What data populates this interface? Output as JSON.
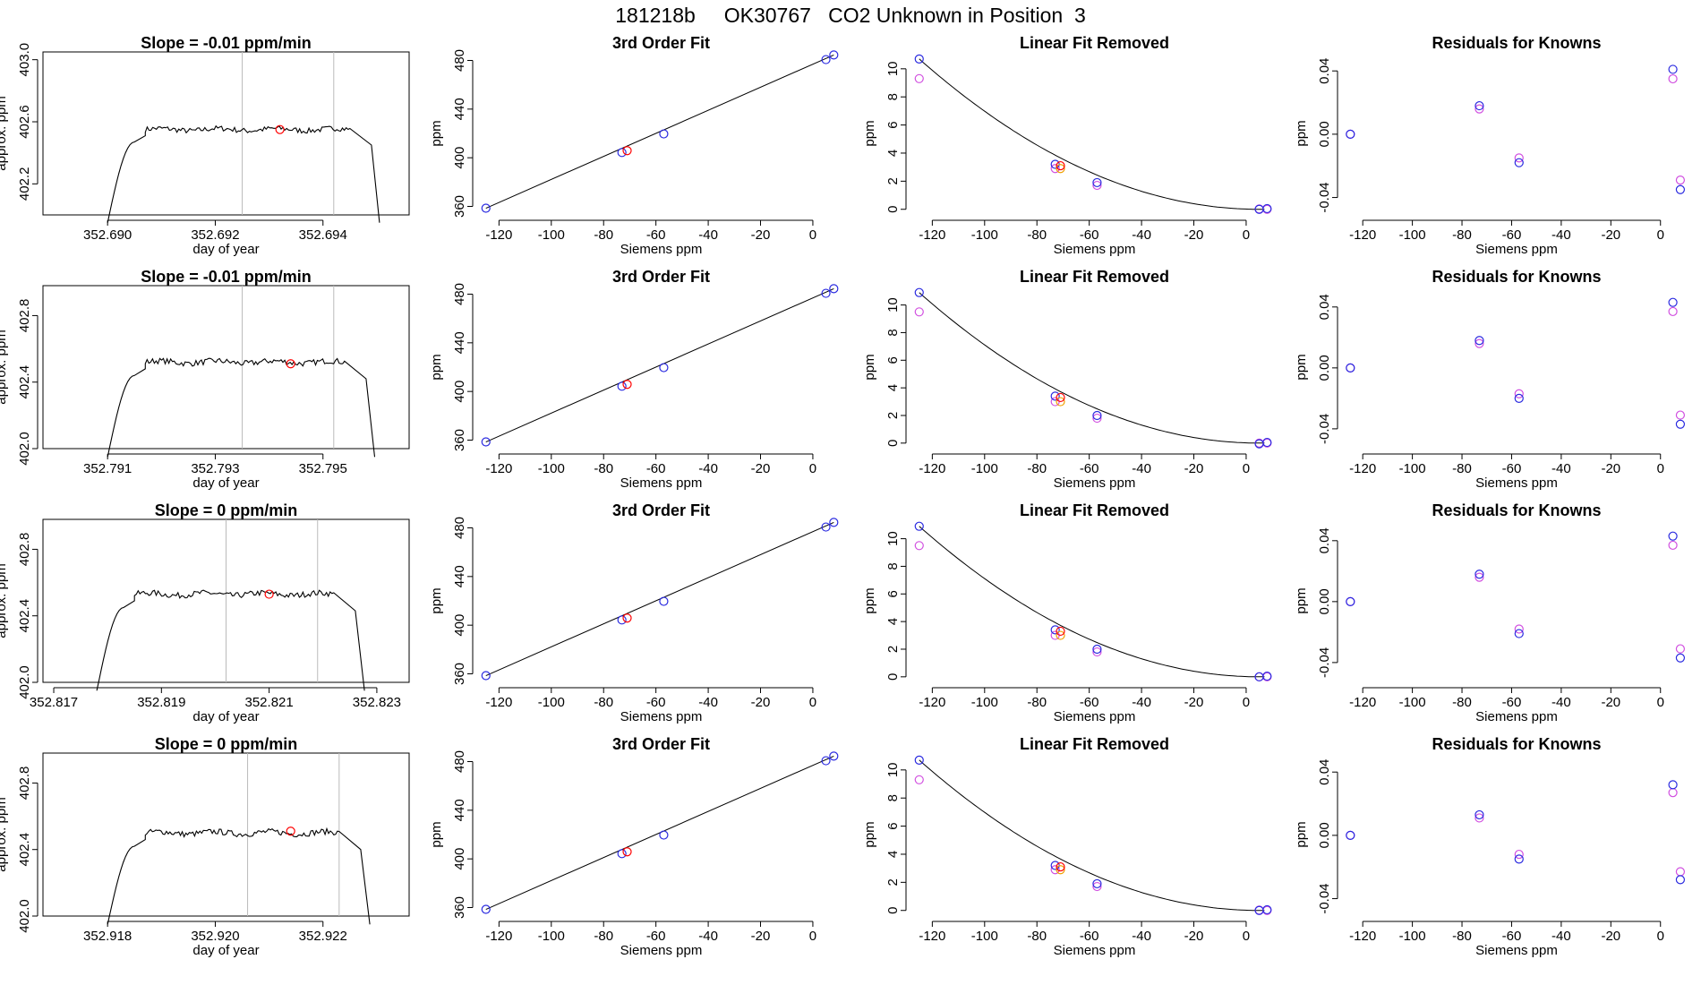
{
  "title": "181218b     OK30767   CO2 Unknown in Position  3",
  "colors": {
    "axis": "#000000",
    "trace": "#000000",
    "guide": "#bbbbbb",
    "unknown": "#ff0000",
    "known_blue": "#2a2ae0",
    "known_magenta": "#d14fe0",
    "orange": "#f0a000"
  },
  "chart_data": [
    {
      "row": 1,
      "type": "line",
      "title": "Slope =  -0.01  ppm/min",
      "xlabel": "day of year",
      "ylabel": "approx. ppm",
      "xlim": [
        352.6888,
        352.6956
      ],
      "ylim": [
        402.0,
        403.05
      ],
      "xticks": [
        352.69,
        352.692,
        352.694
      ],
      "xtick_labels": [
        "352.690",
        "352.692",
        "352.694"
      ],
      "yticks": [
        402.2,
        402.6,
        403.0
      ],
      "ytick_labels": [
        "402.2",
        "402.6",
        "403.0"
      ],
      "guides": [
        352.6925,
        352.6942
      ],
      "plateau_level": 402.55,
      "onset": [
        352.69,
        352.6905,
        352.6907
      ],
      "offset": [
        352.6945,
        352.6949,
        352.69505
      ],
      "unknown_point": [
        352.6932,
        402.55
      ]
    },
    {
      "row": 2,
      "type": "line",
      "title": "Slope =  -0.01  ppm/min",
      "xlabel": "day of year",
      "ylabel": "approx. ppm",
      "xlim": [
        352.7898,
        352.7966
      ],
      "ylim": [
        402.0,
        402.98
      ],
      "xticks": [
        352.791,
        352.793,
        352.795
      ],
      "xtick_labels": [
        "352.791",
        "352.793",
        "352.795"
      ],
      "yticks": [
        402.0,
        402.4,
        402.8
      ],
      "ytick_labels": [
        "402.0",
        "402.4",
        "402.8"
      ],
      "guides": [
        352.7935,
        352.7952
      ],
      "plateau_level": 402.52,
      "onset": [
        352.791,
        352.7915,
        352.7917
      ],
      "offset": [
        352.7954,
        352.7958,
        352.79596
      ],
      "unknown_point": [
        352.7944,
        402.51
      ]
    },
    {
      "row": 3,
      "type": "line",
      "title": "Slope =  0  ppm/min",
      "xlabel": "day of year",
      "ylabel": "approx. ppm",
      "xlim": [
        352.8168,
        352.8236
      ],
      "ylim": [
        402.0,
        402.98
      ],
      "xticks": [
        352.817,
        352.819,
        352.821,
        352.823
      ],
      "xtick_labels": [
        "352.817",
        "352.819",
        "352.821",
        "352.823"
      ],
      "yticks": [
        402.0,
        402.4,
        402.8
      ],
      "ytick_labels": [
        "402.0",
        "402.4",
        "402.8"
      ],
      "guides": [
        352.8202,
        352.8219
      ],
      "plateau_level": 402.53,
      "onset": [
        352.8178,
        352.8183,
        352.8185
      ],
      "offset": [
        352.8222,
        352.8226,
        352.82277
      ],
      "unknown_point": [
        352.821,
        402.53
      ]
    },
    {
      "row": 4,
      "type": "line",
      "title": "Slope =  0  ppm/min",
      "xlabel": "day of year",
      "ylabel": "approx. ppm",
      "xlim": [
        352.9168,
        352.9236
      ],
      "ylim": [
        402.0,
        402.98
      ],
      "xticks": [
        352.918,
        352.92,
        352.922
      ],
      "xtick_labels": [
        "352.918",
        "352.920",
        "352.922"
      ],
      "yticks": [
        402.0,
        402.4,
        402.8
      ],
      "ytick_labels": [
        "402.0",
        "402.4",
        "402.8"
      ],
      "guides": [
        352.9206,
        352.9223
      ],
      "plateau_level": 402.5,
      "onset": [
        352.918,
        352.9185,
        352.9187
      ],
      "offset": [
        352.9223,
        352.9227,
        352.92287
      ],
      "unknown_point": [
        352.9214,
        402.51
      ]
    },
    {
      "row": 1,
      "type": "scatter",
      "title": "3rd Order Fit",
      "xlabel": "Siemens ppm",
      "ylabel": "ppm",
      "xlim": [
        -128,
        12
      ],
      "ylim": [
        353,
        487
      ],
      "xticks": [
        -120,
        -100,
        -80,
        -60,
        -40,
        -20,
        0
      ],
      "xtick_labels": [
        "-120",
        "-100",
        "-80",
        "-60",
        "-40",
        "-20",
        "0"
      ],
      "yticks": [
        360,
        400,
        440,
        480
      ],
      "ytick_labels": [
        "360",
        "400",
        "440",
        "480"
      ],
      "fit_line": [
        [
          -125,
          358.5
        ],
        [
          8,
          484.5
        ]
      ],
      "known": [
        [
          -125,
          358.5
        ],
        [
          -73,
          404.3
        ],
        [
          -57,
          419.6
        ],
        [
          5,
          480.7
        ],
        [
          8,
          484.5
        ]
      ],
      "unknown": [
        [
          -71,
          405.8
        ]
      ]
    },
    {
      "row": 2,
      "type": "scatter",
      "title": "3rd Order Fit",
      "xlabel": "Siemens ppm",
      "ylabel": "ppm",
      "xlim": [
        -128,
        12
      ],
      "ylim": [
        353,
        487
      ],
      "xticks": [
        -120,
        -100,
        -80,
        -60,
        -40,
        -20,
        0
      ],
      "xtick_labels": [
        "-120",
        "-100",
        "-80",
        "-60",
        "-40",
        "-20",
        "0"
      ],
      "yticks": [
        360,
        400,
        440,
        480
      ],
      "ytick_labels": [
        "360",
        "400",
        "440",
        "480"
      ],
      "fit_line": [
        [
          -125,
          358.5
        ],
        [
          8,
          484.5
        ]
      ],
      "known": [
        [
          -125,
          358.5
        ],
        [
          -73,
          404.3
        ],
        [
          -57,
          419.6
        ],
        [
          5,
          480.7
        ],
        [
          8,
          484.5
        ]
      ],
      "unknown": [
        [
          -71,
          405.8
        ]
      ]
    },
    {
      "row": 3,
      "type": "scatter",
      "title": "3rd Order Fit",
      "xlabel": "Siemens ppm",
      "ylabel": "ppm",
      "xlim": [
        -128,
        12
      ],
      "ylim": [
        353,
        487
      ],
      "xticks": [
        -120,
        -100,
        -80,
        -60,
        -40,
        -20,
        0
      ],
      "xtick_labels": [
        "-120",
        "-100",
        "-80",
        "-60",
        "-40",
        "-20",
        "0"
      ],
      "yticks": [
        360,
        400,
        440,
        480
      ],
      "ytick_labels": [
        "360",
        "400",
        "440",
        "480"
      ],
      "fit_line": [
        [
          -125,
          358.5
        ],
        [
          8,
          484.5
        ]
      ],
      "known": [
        [
          -125,
          358.5
        ],
        [
          -73,
          404.3
        ],
        [
          -57,
          419.6
        ],
        [
          5,
          480.7
        ],
        [
          8,
          484.5
        ]
      ],
      "unknown": [
        [
          -71,
          405.8
        ]
      ]
    },
    {
      "row": 4,
      "type": "scatter",
      "title": "3rd Order Fit",
      "xlabel": "Siemens ppm",
      "ylabel": "ppm",
      "xlim": [
        -128,
        12
      ],
      "ylim": [
        353,
        487
      ],
      "xticks": [
        -120,
        -100,
        -80,
        -60,
        -40,
        -20,
        0
      ],
      "xtick_labels": [
        "-120",
        "-100",
        "-80",
        "-60",
        "-40",
        "-20",
        "0"
      ],
      "yticks": [
        360,
        400,
        440,
        480
      ],
      "ytick_labels": [
        "360",
        "400",
        "440",
        "480"
      ],
      "fit_line": [
        [
          -125,
          358.5
        ],
        [
          8,
          484.5
        ]
      ],
      "known": [
        [
          -125,
          358.5
        ],
        [
          -73,
          404.3
        ],
        [
          -57,
          419.6
        ],
        [
          5,
          480.7
        ],
        [
          8,
          484.5
        ]
      ],
      "unknown": [
        [
          -71,
          405.8
        ]
      ]
    },
    {
      "row": 1,
      "type": "scatter",
      "title": "Linear Fit Removed",
      "xlabel": "Siemens ppm",
      "ylabel": "ppm",
      "xlim": [
        -128,
        12
      ],
      "ylim": [
        -0.4,
        11.2
      ],
      "xticks": [
        -120,
        -100,
        -80,
        -60,
        -40,
        -20,
        0
      ],
      "xtick_labels": [
        "-120",
        "-100",
        "-80",
        "-60",
        "-40",
        "-20",
        "0"
      ],
      "yticks": [
        0,
        2,
        4,
        6,
        8,
        10
      ],
      "ytick_labels": [
        "0",
        "2",
        "4",
        "6",
        "8",
        "10"
      ],
      "curve_peak": 10.7,
      "known_blue": [
        [
          -125,
          10.7
        ],
        [
          -73,
          3.2
        ],
        [
          -57,
          1.9
        ],
        [
          5,
          0.0
        ],
        [
          8,
          0.05
        ]
      ],
      "known_magenta": [
        [
          -125,
          9.3
        ],
        [
          -73,
          2.9
        ],
        [
          -57,
          1.7
        ],
        [
          5,
          0.02
        ],
        [
          8,
          0.0
        ]
      ],
      "unknown": [
        [
          -71,
          3.1
        ]
      ],
      "orange": [
        [
          -71,
          2.9
        ]
      ]
    },
    {
      "row": 2,
      "type": "scatter",
      "title": "Linear Fit Removed",
      "xlabel": "Siemens ppm",
      "ylabel": "ppm",
      "xlim": [
        -128,
        12
      ],
      "ylim": [
        -0.4,
        11.4
      ],
      "xticks": [
        -120,
        -100,
        -80,
        -60,
        -40,
        -20,
        0
      ],
      "xtick_labels": [
        "-120",
        "-100",
        "-80",
        "-60",
        "-40",
        "-20",
        "0"
      ],
      "yticks": [
        0,
        2,
        4,
        6,
        8,
        10
      ],
      "ytick_labels": [
        "0",
        "2",
        "4",
        "6",
        "8",
        "10"
      ],
      "curve_peak": 10.9,
      "known_blue": [
        [
          -125,
          10.9
        ],
        [
          -73,
          3.4
        ],
        [
          -57,
          2.0
        ],
        [
          5,
          -0.05
        ],
        [
          8,
          0.05
        ]
      ],
      "known_magenta": [
        [
          -125,
          9.5
        ],
        [
          -73,
          3.0
        ],
        [
          -57,
          1.8
        ],
        [
          5,
          0.0
        ],
        [
          8,
          0.0
        ]
      ],
      "unknown": [
        [
          -71,
          3.3
        ]
      ],
      "orange": [
        [
          -71,
          3.0
        ]
      ]
    },
    {
      "row": 3,
      "type": "scatter",
      "title": "Linear Fit Removed",
      "xlabel": "Siemens ppm",
      "ylabel": "ppm",
      "xlim": [
        -128,
        12
      ],
      "ylim": [
        -0.4,
        11.4
      ],
      "xticks": [
        -120,
        -100,
        -80,
        -60,
        -40,
        -20,
        0
      ],
      "xtick_labels": [
        "-120",
        "-100",
        "-80",
        "-60",
        "-40",
        "-20",
        "0"
      ],
      "yticks": [
        0,
        2,
        4,
        6,
        8,
        10
      ],
      "ytick_labels": [
        "0",
        "2",
        "4",
        "6",
        "8",
        "10"
      ],
      "curve_peak": 10.9,
      "known_blue": [
        [
          -125,
          10.9
        ],
        [
          -73,
          3.4
        ],
        [
          -57,
          2.0
        ],
        [
          5,
          0.0
        ],
        [
          8,
          0.05
        ]
      ],
      "known_magenta": [
        [
          -125,
          9.5
        ],
        [
          -73,
          3.0
        ],
        [
          -57,
          1.8
        ],
        [
          5,
          0.0
        ],
        [
          8,
          0.0
        ]
      ],
      "unknown": [
        [
          -71,
          3.3
        ]
      ],
      "orange": [
        [
          -71,
          3.0
        ]
      ]
    },
    {
      "row": 4,
      "type": "scatter",
      "title": "Linear Fit Removed",
      "xlabel": "Siemens ppm",
      "ylabel": "ppm",
      "xlim": [
        -128,
        12
      ],
      "ylim": [
        -0.4,
        11.2
      ],
      "xticks": [
        -120,
        -100,
        -80,
        -60,
        -40,
        -20,
        0
      ],
      "xtick_labels": [
        "-120",
        "-100",
        "-80",
        "-60",
        "-40",
        "-20",
        "0"
      ],
      "yticks": [
        0,
        2,
        4,
        6,
        8,
        10
      ],
      "ytick_labels": [
        "0",
        "2",
        "4",
        "6",
        "8",
        "10"
      ],
      "curve_peak": 10.7,
      "known_blue": [
        [
          -125,
          10.7
        ],
        [
          -73,
          3.2
        ],
        [
          -57,
          1.9
        ],
        [
          5,
          0.0
        ],
        [
          8,
          0.05
        ]
      ],
      "known_magenta": [
        [
          -125,
          9.3
        ],
        [
          -73,
          2.9
        ],
        [
          -57,
          1.7
        ],
        [
          5,
          0.02
        ],
        [
          8,
          0.0
        ]
      ],
      "unknown": [
        [
          -71,
          3.1
        ]
      ],
      "orange": [
        [
          -71,
          2.9
        ]
      ]
    },
    {
      "row": 1,
      "type": "scatter",
      "title": "Residuals for Knowns",
      "xlabel": "Siemens ppm",
      "ylabel": "ppm",
      "xlim": [
        -128,
        12
      ],
      "ylim": [
        -0.051,
        0.052
      ],
      "xticks": [
        -120,
        -100,
        -80,
        -60,
        -40,
        -20,
        0
      ],
      "xtick_labels": [
        "-120",
        "-100",
        "-80",
        "-60",
        "-40",
        "-20",
        "0"
      ],
      "yticks": [
        -0.04,
        0.0,
        0.04
      ],
      "ytick_labels": [
        "-0.04",
        "0.00",
        "0.04"
      ],
      "known_blue": [
        [
          -125,
          0.0
        ],
        [
          -73,
          0.018
        ],
        [
          -57,
          -0.018
        ],
        [
          5,
          0.041
        ],
        [
          8,
          -0.035
        ]
      ],
      "known_magenta": [
        [
          -125,
          0.0
        ],
        [
          -73,
          0.016
        ],
        [
          -57,
          -0.015
        ],
        [
          5,
          0.035
        ],
        [
          8,
          -0.029
        ]
      ]
    },
    {
      "row": 2,
      "type": "scatter",
      "title": "Residuals for Knowns",
      "xlabel": "Siemens ppm",
      "ylabel": "ppm",
      "xlim": [
        -128,
        12
      ],
      "ylim": [
        -0.053,
        0.054
      ],
      "xticks": [
        -120,
        -100,
        -80,
        -60,
        -40,
        -20,
        0
      ],
      "xtick_labels": [
        "-120",
        "-100",
        "-80",
        "-60",
        "-40",
        "-20",
        "0"
      ],
      "yticks": [
        -0.04,
        0.0,
        0.04
      ],
      "ytick_labels": [
        "-0.04",
        "0.00",
        "0.04"
      ],
      "known_blue": [
        [
          -125,
          0.0
        ],
        [
          -73,
          0.018
        ],
        [
          -57,
          -0.02
        ],
        [
          5,
          0.043
        ],
        [
          8,
          -0.037
        ]
      ],
      "known_magenta": [
        [
          -125,
          0.0
        ],
        [
          -73,
          0.016
        ],
        [
          -57,
          -0.017
        ],
        [
          5,
          0.037
        ],
        [
          8,
          -0.031
        ]
      ]
    },
    {
      "row": 3,
      "type": "scatter",
      "title": "Residuals for Knowns",
      "xlabel": "Siemens ppm",
      "ylabel": "ppm",
      "xlim": [
        -128,
        12
      ],
      "ylim": [
        -0.053,
        0.054
      ],
      "xticks": [
        -120,
        -100,
        -80,
        -60,
        -40,
        -20,
        0
      ],
      "xtick_labels": [
        "-120",
        "-100",
        "-80",
        "-60",
        "-40",
        "-20",
        "0"
      ],
      "yticks": [
        -0.04,
        0.0,
        0.04
      ],
      "ytick_labels": [
        "-0.04",
        "0.00",
        "0.04"
      ],
      "known_blue": [
        [
          -125,
          0.0
        ],
        [
          -73,
          0.018
        ],
        [
          -57,
          -0.021
        ],
        [
          5,
          0.043
        ],
        [
          8,
          -0.037
        ]
      ],
      "known_magenta": [
        [
          -125,
          0.0
        ],
        [
          -73,
          0.016
        ],
        [
          -57,
          -0.018
        ],
        [
          5,
          0.037
        ],
        [
          8,
          -0.031
        ]
      ]
    },
    {
      "row": 4,
      "type": "scatter",
      "title": "Residuals for Knowns",
      "xlabel": "Siemens ppm",
      "ylabel": "ppm",
      "xlim": [
        -128,
        12
      ],
      "ylim": [
        -0.051,
        0.052
      ],
      "xticks": [
        -120,
        -100,
        -80,
        -60,
        -40,
        -20,
        0
      ],
      "xtick_labels": [
        "-120",
        "-100",
        "-80",
        "-60",
        "-40",
        "-20",
        "0"
      ],
      "yticks": [
        -0.04,
        0.0,
        0.04
      ],
      "ytick_labels": [
        "-0.04",
        "0.00",
        "0.04"
      ],
      "known_blue": [
        [
          -125,
          0.0
        ],
        [
          -73,
          0.013
        ],
        [
          -57,
          -0.015
        ],
        [
          5,
          0.032
        ],
        [
          8,
          -0.028
        ]
      ],
      "known_magenta": [
        [
          -125,
          0.0
        ],
        [
          -73,
          0.011
        ],
        [
          -57,
          -0.012
        ],
        [
          5,
          0.027
        ],
        [
          8,
          -0.023
        ]
      ]
    }
  ]
}
